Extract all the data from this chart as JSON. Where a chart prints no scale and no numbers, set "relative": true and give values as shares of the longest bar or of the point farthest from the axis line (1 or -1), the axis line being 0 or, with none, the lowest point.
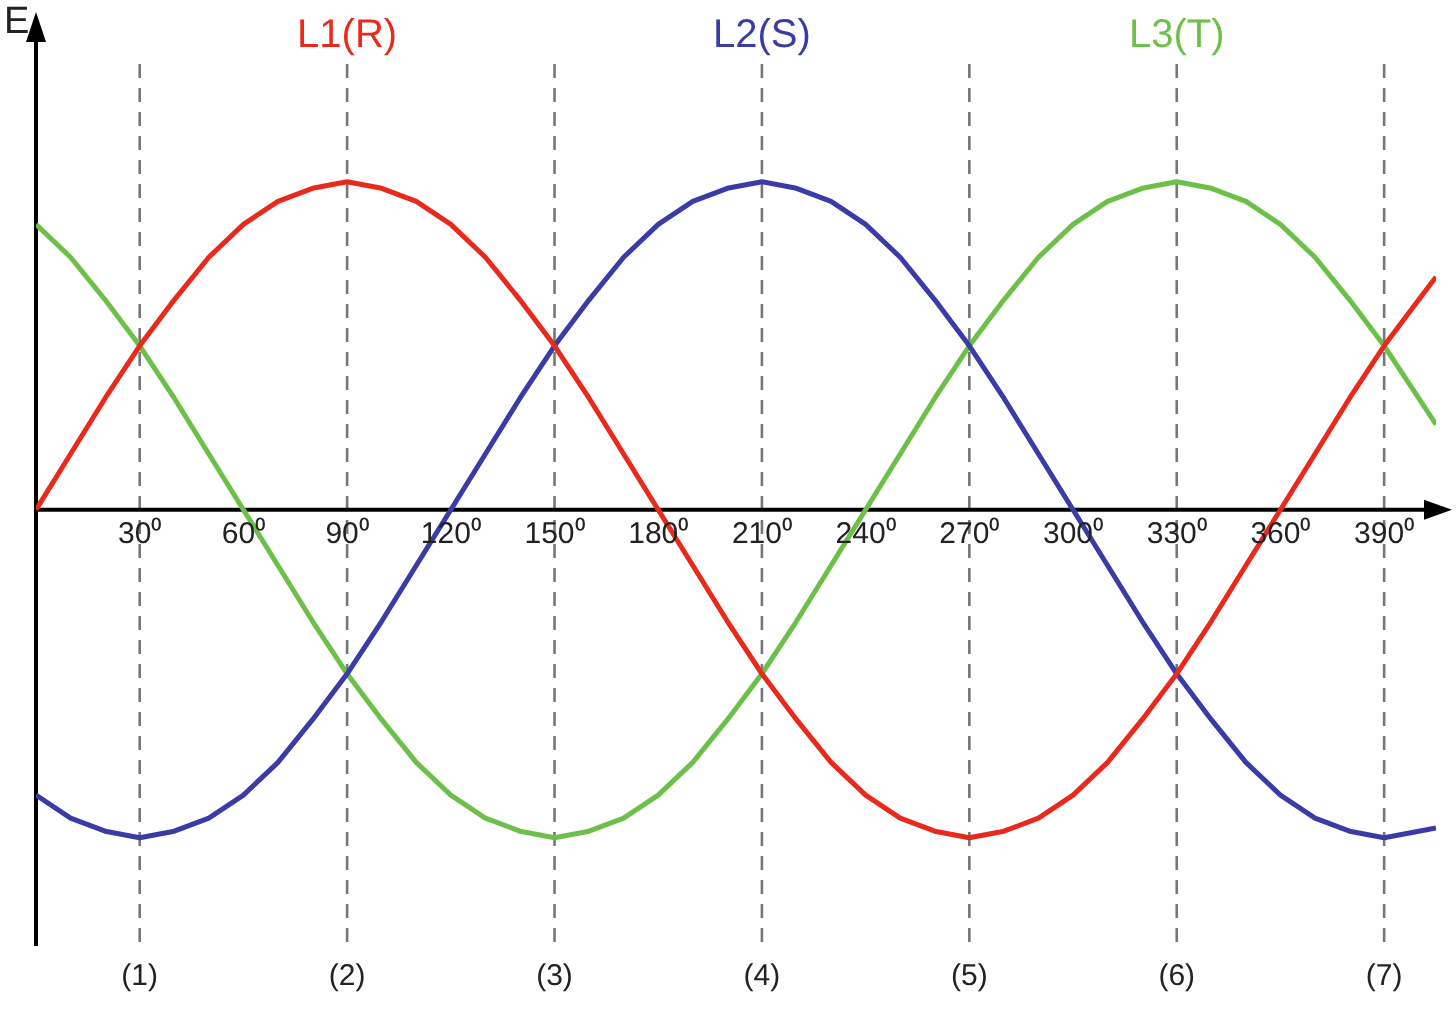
{
  "chart_data": {
    "type": "line",
    "relative": true,
    "ylabel": "E",
    "legend": false,
    "grid": false,
    "marker": "none",
    "line_style": "solid",
    "x": [
      0,
      10,
      20,
      30,
      40,
      50,
      60,
      70,
      80,
      90,
      100,
      110,
      120,
      130,
      140,
      150,
      160,
      170,
      180,
      190,
      200,
      210,
      220,
      230,
      240,
      250,
      260,
      270,
      280,
      290,
      300,
      310,
      320,
      330,
      340,
      350,
      360,
      370,
      380,
      390,
      400,
      405
    ],
    "xlim": [
      0,
      405
    ],
    "xticks": [
      {
        "value": 30,
        "label": "30⁰"
      },
      {
        "value": 60,
        "label": "60⁰"
      },
      {
        "value": 90,
        "label": "90⁰"
      },
      {
        "value": 120,
        "label": "120⁰"
      },
      {
        "value": 150,
        "label": "150⁰"
      },
      {
        "value": 180,
        "label": "180⁰"
      },
      {
        "value": 210,
        "label": "210⁰"
      },
      {
        "value": 240,
        "label": "240⁰"
      },
      {
        "value": 270,
        "label": "270⁰"
      },
      {
        "value": 300,
        "label": "300⁰"
      },
      {
        "value": 330,
        "label": "330⁰"
      },
      {
        "value": 360,
        "label": "360⁰"
      },
      {
        "value": 390,
        "label": "390⁰"
      }
    ],
    "series": [
      {
        "name": "L1(R)",
        "color": "#e8291c",
        "values": [
          0,
          0.17,
          0.34,
          0.5,
          0.64,
          0.77,
          0.87,
          0.94,
          0.98,
          1,
          0.98,
          0.94,
          0.87,
          0.77,
          0.64,
          0.5,
          0.34,
          0.17,
          0,
          -0.17,
          -0.34,
          -0.5,
          -0.64,
          -0.77,
          -0.87,
          -0.94,
          -0.98,
          -1,
          -0.98,
          -0.94,
          -0.87,
          -0.77,
          -0.64,
          -0.5,
          -0.34,
          -0.17,
          0,
          0.17,
          0.34,
          0.5,
          0.64,
          0.71
        ]
      },
      {
        "name": "L2(S)",
        "color": "#3b3ba8",
        "values": [
          -0.87,
          -0.94,
          -0.98,
          -1,
          -0.98,
          -0.94,
          -0.87,
          -0.77,
          -0.64,
          -0.5,
          -0.34,
          -0.17,
          0,
          0.17,
          0.34,
          0.5,
          0.64,
          0.77,
          0.87,
          0.94,
          0.98,
          1,
          0.98,
          0.94,
          0.87,
          0.77,
          0.64,
          0.5,
          0.34,
          0.17,
          0,
          -0.17,
          -0.34,
          -0.5,
          -0.64,
          -0.77,
          -0.87,
          -0.94,
          -0.98,
          -1,
          -0.98,
          -0.97
        ]
      },
      {
        "name": "L3(T)",
        "color": "#6cc04a",
        "values": [
          0.87,
          0.77,
          0.64,
          0.5,
          0.34,
          0.17,
          0,
          -0.17,
          -0.34,
          -0.5,
          -0.64,
          -0.77,
          -0.87,
          -0.94,
          -0.98,
          -1,
          -0.98,
          -0.94,
          -0.87,
          -0.77,
          -0.64,
          -0.5,
          -0.34,
          -0.17,
          0,
          0.17,
          0.34,
          0.5,
          0.64,
          0.77,
          0.87,
          0.94,
          0.98,
          1,
          0.98,
          0.94,
          0.87,
          0.77,
          0.64,
          0.5,
          0.34,
          0.26
        ]
      }
    ],
    "ref_lines": [
      {
        "axis": "x",
        "value": 30,
        "color": "#777777",
        "line_style": "dashed"
      },
      {
        "axis": "x",
        "value": 90,
        "color": "#777777",
        "line_style": "dashed"
      },
      {
        "axis": "x",
        "value": 150,
        "color": "#777777",
        "line_style": "dashed"
      },
      {
        "axis": "x",
        "value": 210,
        "color": "#777777",
        "line_style": "dashed"
      },
      {
        "axis": "x",
        "value": 270,
        "color": "#777777",
        "line_style": "dashed"
      },
      {
        "axis": "x",
        "value": 330,
        "color": "#777777",
        "line_style": "dashed"
      },
      {
        "axis": "x",
        "value": 390,
        "color": "#777777",
        "line_style": "dashed"
      }
    ],
    "annotations": [
      "(1)",
      "(2)",
      "(3)",
      "(4)",
      "(5)",
      "(6)",
      "(7)"
    ]
  }
}
